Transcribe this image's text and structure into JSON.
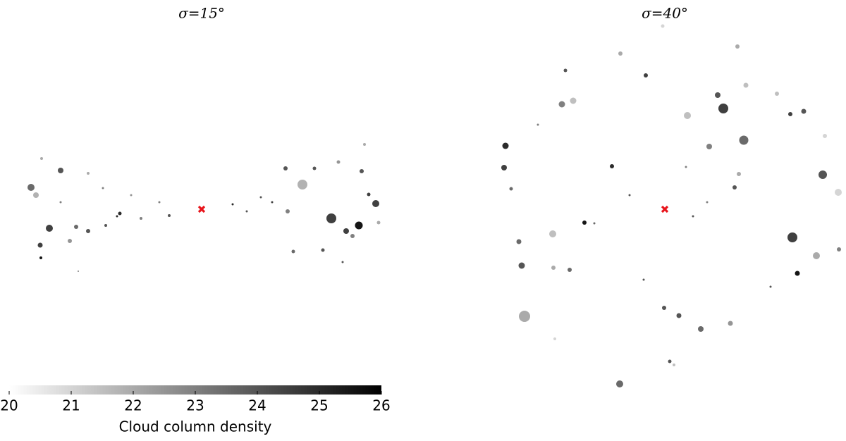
{
  "colorbar": {
    "label": "Cloud column density",
    "lim": [
      20,
      26
    ],
    "ticks": [
      20,
      21,
      22,
      23,
      24,
      25,
      26
    ],
    "colors": [
      "#ffffff",
      "#000000"
    ]
  },
  "chart_data": [
    {
      "type": "scatter",
      "title": "σ=15°",
      "xlim": [
        -270,
        270
      ],
      "ylim": [
        -300,
        300
      ],
      "center": {
        "x": 0,
        "y": 0,
        "color": "#e8141b"
      },
      "x": [
        -242,
        -235,
        -200,
        -216,
        -229,
        -228,
        -161,
        -178,
        -187,
        -116,
        143,
        184,
        223,
        247,
        205,
        119,
        122,
        214,
        227,
        237,
        194,
        160,
        130,
        172,
        251,
        231,
        -227,
        -161,
        -136,
        -86,
        -46,
        44,
        64,
        84,
        -140,
        -100,
        -60,
        -200,
        -175,
        200,
        100,
        -120
      ],
      "y": [
        31,
        20,
        55,
        -27,
        -51,
        -69,
        -31,
        -25,
        -45,
        -6,
        35,
        -13,
        -23,
        8,
        -31,
        58,
        -3,
        -38,
        54,
        21,
        67,
        58,
        -60,
        -58,
        -19,
        92,
        72,
        51,
        -23,
        -13,
        -9,
        7,
        -3,
        17,
        30,
        20,
        10,
        10,
        -88,
        -75,
        10,
        -10
      ],
      "sizes": [
        5,
        4,
        4,
        5,
        3.5,
        2,
        3,
        3,
        3,
        2.5,
        7,
        7,
        5.5,
        5,
        4,
        3,
        3,
        3,
        3,
        2.5,
        2.5,
        2.5,
        2.5,
        2.5,
        2.5,
        2,
        2,
        2,
        2,
        2,
        2,
        1.5,
        1.5,
        1.5,
        1.5,
        1.5,
        1.5,
        1.5,
        1,
        1.5,
        1.5,
        1.5
      ],
      "density": [
        23.5,
        21.8,
        24,
        24.5,
        24.5,
        25.5,
        24,
        23.5,
        22.5,
        25,
        21.8,
        24.5,
        25.5,
        24.5,
        24.5,
        24,
        23,
        23,
        24,
        24.5,
        22.5,
        24,
        23.5,
        24,
        22,
        22,
        22,
        22,
        24,
        23,
        24,
        25,
        24,
        24,
        23,
        22.5,
        23,
        23,
        23,
        24,
        24.5,
        25
      ]
    },
    {
      "type": "scatter",
      "title": "σ=40°",
      "xlim": [
        -270,
        270
      ],
      "ylim": [
        -300,
        300
      ],
      "center": {
        "x": 0,
        "y": 0,
        "color": "#e8141b"
      },
      "x": [
        -199,
        83,
        112,
        181,
        224,
        32,
        -159,
        -226,
        -228,
        -64,
        215,
        246,
        -146,
        -130,
        -203,
        -207,
        51,
        75,
        63,
        115,
        197,
        178,
        188,
        93,
        105,
        99,
        159,
        227,
        -114,
        20,
        -1,
        -63,
        -27,
        -141,
        -158,
        -135,
        -75,
        247,
        103,
        -3,
        7,
        13,
        -218,
        -156,
        -50,
        40,
        60,
        -100,
        150,
        -180,
        30,
        -30
      ],
      "y": [
        -152,
        143,
        98,
        -40,
        49,
        133,
        -35,
        90,
        59,
        -248,
        -66,
        24,
        149,
        154,
        -80,
        -46,
        -170,
        162,
        89,
        176,
        139,
        135,
        -91,
        -162,
        50,
        31,
        164,
        104,
        -19,
        -151,
        -140,
        221,
        190,
        197,
        -83,
        -86,
        61,
        -57,
        231,
        260,
        -216,
        -221,
        29,
        -184,
        20,
        -10,
        10,
        -20,
        -110,
        120,
        60,
        -100
      ],
      "sizes": [
        8,
        7,
        6.5,
        7,
        6,
        5,
        5,
        4.5,
        4,
        5,
        5,
        5,
        4.5,
        4.5,
        4.5,
        3.5,
        4,
        4,
        4,
        3.5,
        3.5,
        3,
        3.5,
        3.5,
        3,
        3,
        3,
        3,
        3,
        3.5,
        3,
        3,
        3,
        2.5,
        3,
        3,
        3,
        3,
        3,
        2.5,
        2.5,
        2,
        2.5,
        2,
        1.5,
        1.5,
        1.5,
        1.5,
        1.5,
        1.5,
        1.5,
        1.5
      ],
      "density": [
        22,
        24.5,
        23.5,
        24.5,
        24,
        21.5,
        21.5,
        25,
        24.5,
        23.5,
        22,
        21,
        23,
        21.5,
        24,
        23.5,
        23.5,
        24,
        23,
        21.5,
        24,
        24.5,
        25.5,
        22.5,
        22,
        24,
        21.5,
        21,
        25.5,
        24,
        24,
        22,
        24.5,
        24,
        22,
        23.5,
        25,
        23,
        22,
        21,
        24,
        21.5,
        23.5,
        21,
        24,
        24,
        23,
        23.5,
        24,
        23,
        23,
        24
      ]
    }
  ]
}
